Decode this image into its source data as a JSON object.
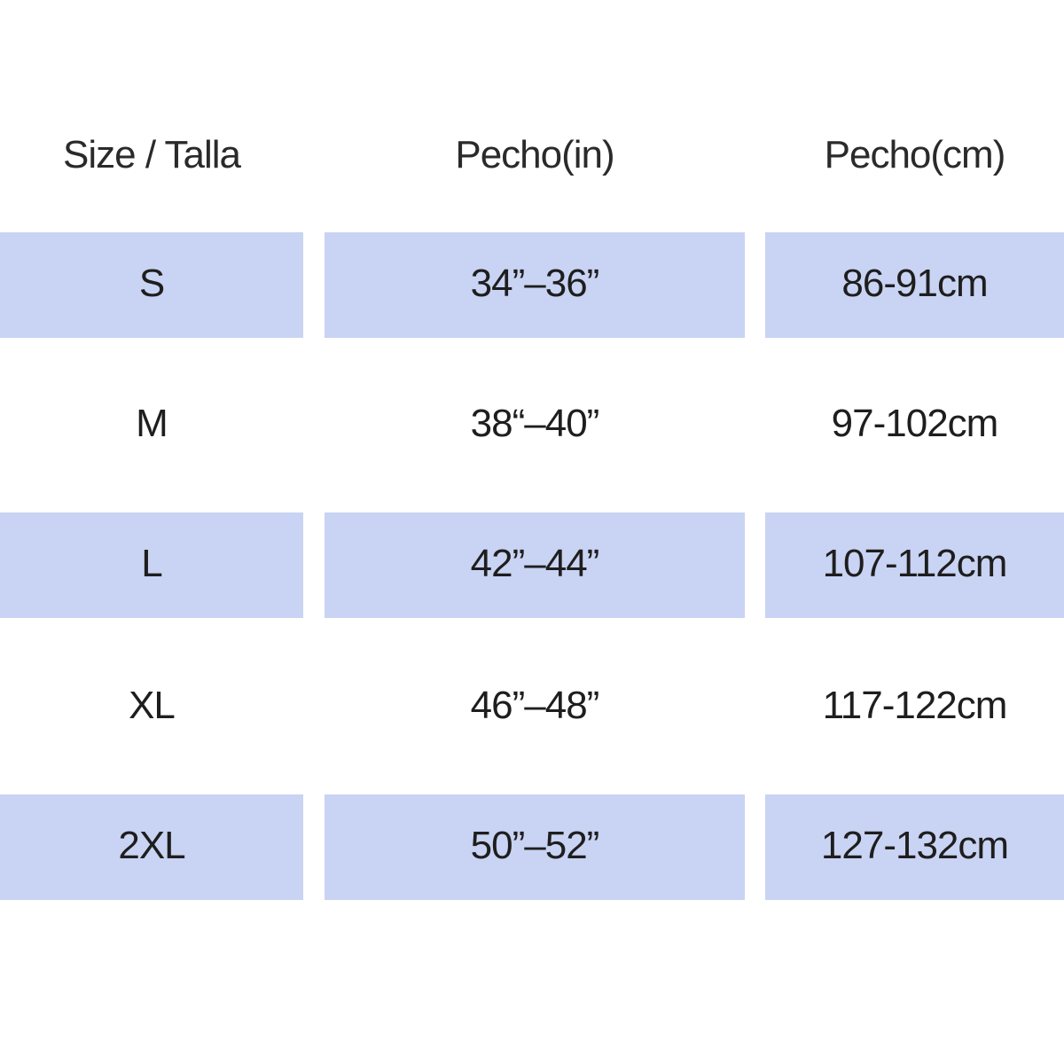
{
  "colors": {
    "band": "#c9d3f3",
    "background": "#ffffff",
    "text": "#1e1e1e"
  },
  "table": {
    "headers": [
      "Size / Talla",
      "Pecho(in)",
      "Pecho(cm)"
    ],
    "rows": [
      {
        "size": "S",
        "chest_in": "34”–36”",
        "chest_cm": "86-91cm",
        "shaded": true
      },
      {
        "size": "M",
        "chest_in": "38“–40”",
        "chest_cm": "97-102cm",
        "shaded": false
      },
      {
        "size": "L",
        "chest_in": "42”–44”",
        "chest_cm": "107-112cm",
        "shaded": true
      },
      {
        "size": "XL",
        "chest_in": "46”–48”",
        "chest_cm": "117-122cm",
        "shaded": false
      },
      {
        "size": "2XL",
        "chest_in": "50”–52”",
        "chest_cm": "127-132cm",
        "shaded": true
      }
    ]
  }
}
